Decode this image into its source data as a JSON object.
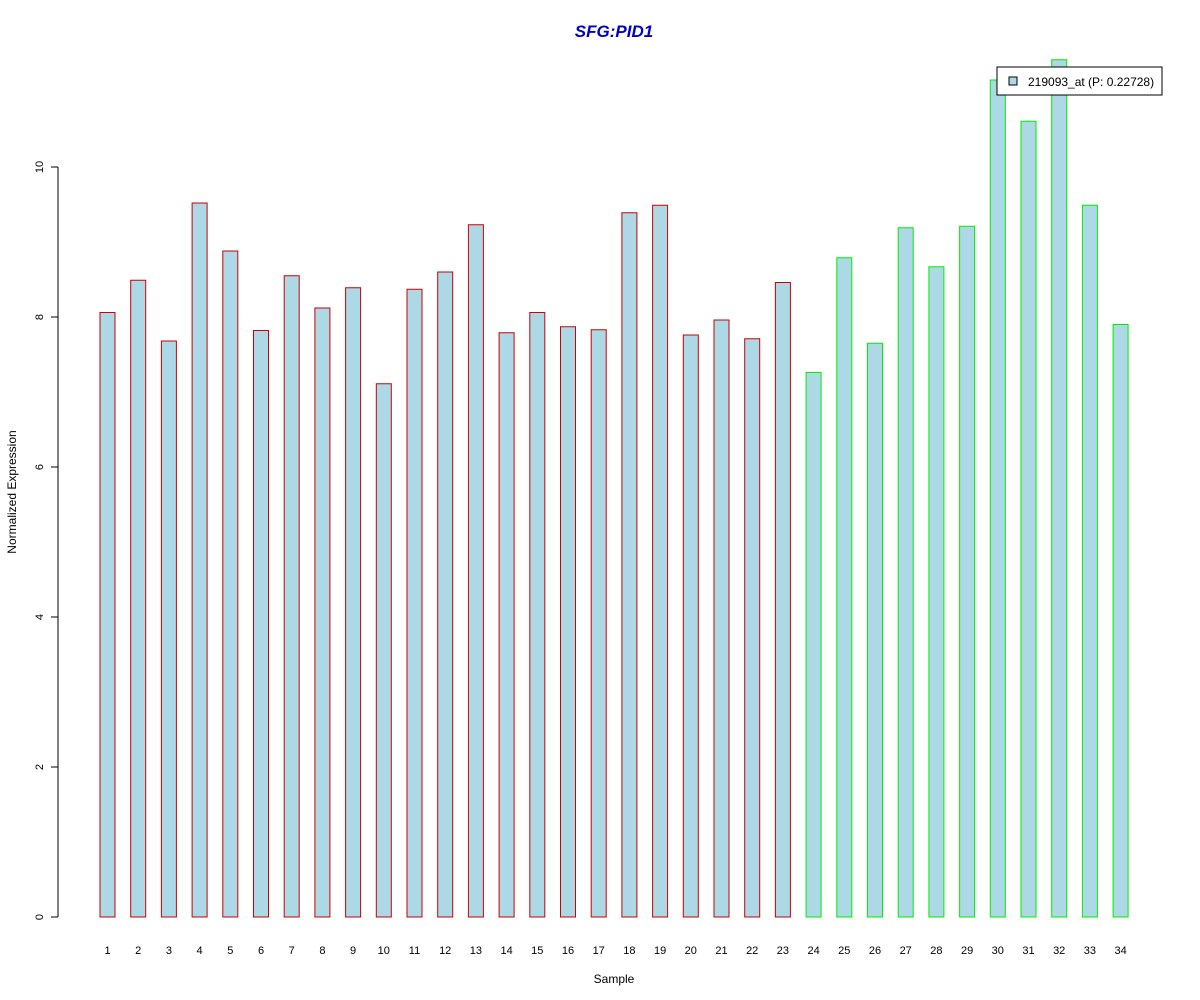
{
  "chart_data": {
    "type": "bar",
    "title": "SFG:PID1",
    "xlabel": "Sample",
    "ylabel": "Normalized Expression",
    "ylim": [
      0,
      11.5
    ],
    "yticks": [
      "0",
      "2",
      "4",
      "6",
      "8",
      "10"
    ],
    "categories": [
      "1",
      "2",
      "3",
      "4",
      "5",
      "6",
      "7",
      "8",
      "9",
      "10",
      "11",
      "12",
      "13",
      "14",
      "15",
      "16",
      "17",
      "18",
      "19",
      "20",
      "21",
      "22",
      "23",
      "24",
      "25",
      "26",
      "27",
      "28",
      "29",
      "30",
      "31",
      "32",
      "33",
      "34"
    ],
    "series": [
      {
        "name": "219093_at (P: 0.22728)",
        "values": [
          8.06,
          8.49,
          7.68,
          9.52,
          8.88,
          7.82,
          8.55,
          8.12,
          8.39,
          7.11,
          8.37,
          8.6,
          9.23,
          7.79,
          8.06,
          7.87,
          7.83,
          9.39,
          9.49,
          7.76,
          7.96,
          7.71,
          8.46,
          7.26,
          8.79,
          7.65,
          9.19,
          8.67,
          9.21,
          11.16,
          10.61,
          11.43,
          9.49,
          7.9
        ]
      }
    ],
    "group_of_sample": [
      0,
      0,
      0,
      0,
      0,
      0,
      0,
      0,
      0,
      0,
      0,
      0,
      0,
      0,
      0,
      0,
      0,
      0,
      0,
      0,
      0,
      0,
      0,
      1,
      1,
      1,
      1,
      1,
      1,
      1,
      1,
      1,
      1,
      1
    ],
    "legend_placement": "top-right",
    "grid": false,
    "colors": {
      "title": "#0000CC",
      "bar_fill": "#ADD8E6",
      "group_borders": [
        "#CC0000",
        "#00EE00"
      ],
      "axis": "#000000"
    }
  }
}
